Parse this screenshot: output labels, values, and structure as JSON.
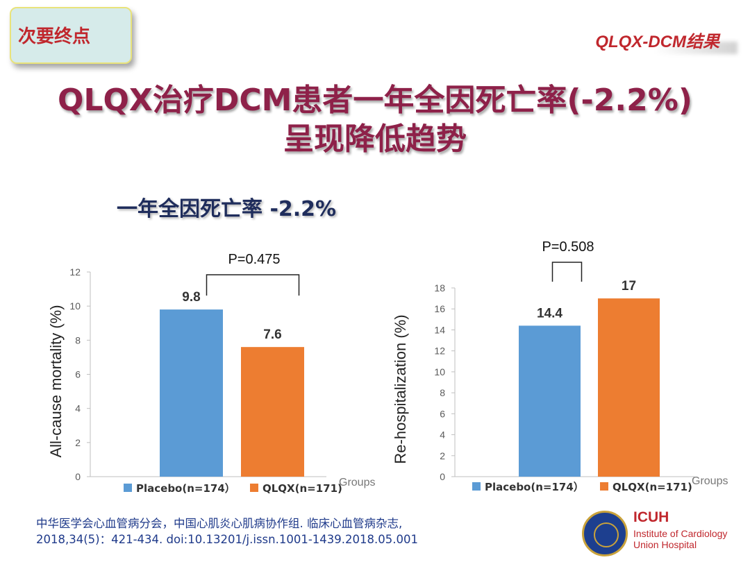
{
  "header": {
    "tag": "次要终点",
    "corner_title": "QLQX-DCM结果",
    "title_line1": "QLQX治疗DCM患者一年全因死亡率(-2.2%)",
    "title_line2": "呈现降低趋势",
    "subtitle": "一年全因死亡率 -2.2%"
  },
  "chart_data": [
    {
      "type": "bar",
      "categories": [
        "Placebo(n=174）",
        "QLQX(n=171)"
      ],
      "values": [
        9.8,
        7.6
      ],
      "data_labels": [
        "9.8",
        "7.6"
      ],
      "colors": [
        "#5b9bd5",
        "#ed7d31"
      ],
      "ylabel": "All-cause mortality (%)",
      "xlabel": "Groups",
      "ylim": [
        0,
        12
      ],
      "yticks": [
        "0",
        "2",
        "4",
        "6",
        "8",
        "10",
        "12"
      ],
      "annotation": "P=0.475",
      "legend": "bottom"
    },
    {
      "type": "bar",
      "categories": [
        "Placebo(n=174）",
        "QLQX(n=171)"
      ],
      "values": [
        14.4,
        17
      ],
      "data_labels": [
        "14.4",
        "17"
      ],
      "colors": [
        "#5b9bd5",
        "#ed7d31"
      ],
      "ylabel": "Re-hospitalization (%)",
      "xlabel": "Groups",
      "ylim": [
        0,
        18
      ],
      "yticks": [
        "0",
        "2",
        "4",
        "6",
        "8",
        "10",
        "12",
        "14",
        "16",
        "18"
      ],
      "annotation": "P=0.508",
      "legend": "bottom"
    }
  ],
  "footer": {
    "reference_line1": "中华医学会心血管病分会，中国心肌炎心肌病协作组. 临床心血管病杂志,",
    "reference_line2": "2018,34(5)：421-434. doi:10.13201/j.issn.1001-1439.2018.05.001",
    "logo_icon": "hospital-seal-icon",
    "logo_title": "ICUH",
    "logo_line1": "Institute of Cardiology",
    "logo_line2": "Union Hospital"
  }
}
